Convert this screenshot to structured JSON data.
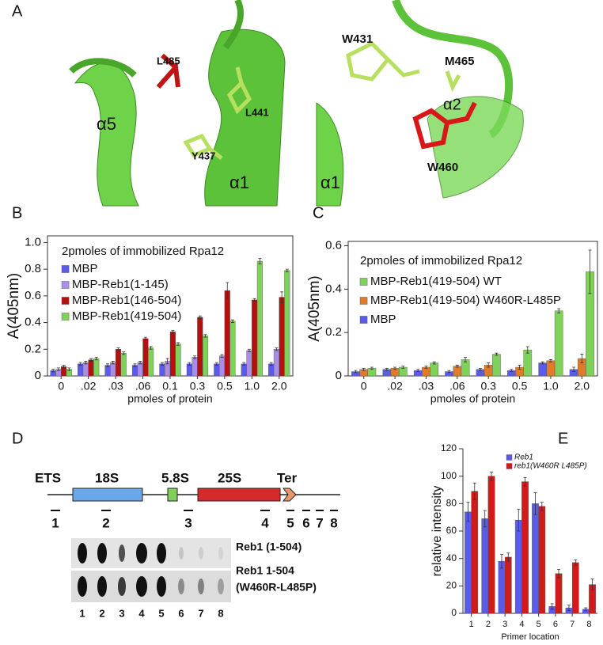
{
  "panel_labels": [
    "A",
    "B",
    "C",
    "D",
    "E"
  ],
  "panel_a": {
    "left_labels": [
      "L485",
      "α5",
      "L441",
      "Y437",
      "α1"
    ],
    "right_labels": [
      "W431",
      "M465",
      "α2",
      "α1",
      "W460"
    ]
  },
  "chart_data": [
    {
      "type": "bar",
      "legend_title": "2pmoles of immobilized Rpa12",
      "ylabel": "A(405nm)",
      "xlabel": "pmoles of protein",
      "categories": [
        "0",
        ".02",
        ".03",
        ".06",
        "0.1",
        "0.3",
        "0.5",
        "1.0",
        "2.0"
      ],
      "series": [
        {
          "name": "MBP",
          "color": "#5b5bea",
          "values": [
            0.04,
            0.09,
            0.08,
            0.08,
            0.09,
            0.09,
            0.09,
            0.09,
            0.09
          ],
          "errors": [
            0.01,
            0.01,
            0.01,
            0.01,
            0.01,
            0.01,
            0.01,
            0.01,
            0.01
          ]
        },
        {
          "name": "MBP-Reb1(1-145)",
          "color": "#a98ee8",
          "values": [
            0.05,
            0.1,
            0.1,
            0.1,
            0.11,
            0.14,
            0.15,
            0.19,
            0.2
          ],
          "errors": [
            0.01,
            0.01,
            0.01,
            0.01,
            0.02,
            0.01,
            0.01,
            0.01,
            0.01
          ]
        },
        {
          "name": "MBP-Reb1(146-504)",
          "color": "#b51010",
          "values": [
            0.07,
            0.12,
            0.2,
            0.28,
            0.33,
            0.44,
            0.64,
            0.57,
            0.59
          ],
          "errors": [
            0.01,
            0.01,
            0.01,
            0.01,
            0.01,
            0.01,
            0.06,
            0.01,
            0.04
          ]
        },
        {
          "name": "MBP-Reb1(419-504)",
          "color": "#7fd15a",
          "values": [
            0.05,
            0.13,
            0.17,
            0.21,
            0.24,
            0.3,
            0.41,
            0.86,
            0.79
          ],
          "errors": [
            0.01,
            0.01,
            0.01,
            0.01,
            0.01,
            0.01,
            0.01,
            0.02,
            0.01
          ]
        }
      ],
      "ylim": [
        0,
        1.05
      ],
      "yticks": [
        0,
        0.2,
        0.4,
        0.6,
        0.8,
        {
          "value": 1,
          "label": "1.0"
        }
      ]
    },
    {
      "type": "bar",
      "legend_title": "2pmoles of immobilized Rpa12",
      "ylabel": "A(405nm)",
      "xlabel": "pmoles of protein",
      "categories": [
        "0",
        ".02",
        ".03",
        ".06",
        "0.3",
        "0.5",
        "1.0",
        "2.0"
      ],
      "series": [
        {
          "name": "MBP",
          "color": "#5b5bea",
          "values": [
            0.02,
            0.03,
            0.025,
            0.02,
            0.03,
            0.025,
            0.06,
            0.03
          ],
          "errors": [
            0.005,
            0.005,
            0.005,
            0.005,
            0.005,
            0.005,
            0.005,
            0.01
          ]
        },
        {
          "name": "MBP-Reb1(419-504) W460R-L485P",
          "color": "#e07b2a",
          "values": [
            0.03,
            0.035,
            0.04,
            0.045,
            0.05,
            0.04,
            0.07,
            0.08
          ],
          "errors": [
            0.005,
            0.005,
            0.005,
            0.005,
            0.01,
            0.01,
            0.005,
            0.02
          ]
        },
        {
          "name": "MBP-Reb1(419-504) WT",
          "color": "#7fd15a",
          "values": [
            0.035,
            0.04,
            0.06,
            0.075,
            0.1,
            0.12,
            0.3,
            0.48
          ],
          "errors": [
            0.005,
            0.005,
            0.005,
            0.01,
            0.005,
            0.015,
            0.01,
            0.1
          ]
        }
      ],
      "ylim": [
        0,
        0.62
      ],
      "yticks": [
        0,
        0.2,
        0.4,
        0.6
      ]
    },
    {
      "type": "bar",
      "legend_title": null,
      "ylabel": "relative intensity",
      "xlabel": "Primer location",
      "categories": [
        "1",
        "2",
        "3",
        "4",
        "5",
        "6",
        "7",
        "8"
      ],
      "series": [
        {
          "name": "Reb1",
          "color": "#5b5bea",
          "values": [
            74,
            69,
            38,
            68,
            80,
            5,
            4,
            3
          ],
          "errors": [
            7,
            6,
            5,
            8,
            8,
            2,
            2,
            1
          ]
        },
        {
          "name": "reb1(W460R L485P)",
          "color": "#d11a1a",
          "values": [
            89,
            100,
            41,
            96,
            78,
            29,
            37,
            21
          ],
          "errors": [
            6,
            3,
            3,
            3,
            3,
            3,
            2,
            4
          ]
        }
      ],
      "ylim": [
        0,
        120
      ],
      "yticks": [
        0,
        20,
        40,
        60,
        80,
        100,
        120
      ]
    }
  ],
  "panel_d": {
    "regions": [
      "ETS",
      "18S",
      "5.8S",
      "25S",
      "Ter"
    ],
    "primers": [
      "1",
      "2",
      "3",
      "4",
      "5",
      "6",
      "7",
      "8"
    ],
    "gel_rows": [
      "Reb1 (1-504)",
      "Reb1 1-504",
      "(W460R-L485P)"
    ],
    "lanes": [
      "1",
      "2",
      "3",
      "4",
      "5",
      "6",
      "7",
      "8"
    ]
  }
}
